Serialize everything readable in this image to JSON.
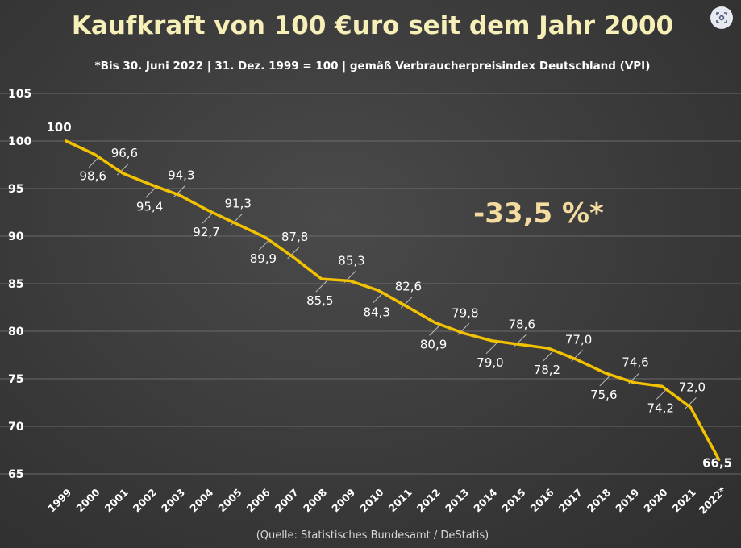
{
  "chart_data": {
    "type": "line",
    "title": "Kaufkraft von 100 €uro seit dem Jahr 2000",
    "subtitle": "*Bis 30. Juni 2022 | 31. Dez. 1999 = 100 | gemäß Verbraucherpreisindex Deutschland (VPI)",
    "categories": [
      "1999",
      "2000",
      "2001",
      "2002",
      "2003",
      "2004",
      "2005",
      "2006",
      "2007",
      "2008",
      "2009",
      "2010",
      "2011",
      "2012",
      "2013",
      "2014",
      "2015",
      "2016",
      "2017",
      "2018",
      "2019",
      "2020",
      "2021",
      "2022*"
    ],
    "series": [
      {
        "name": "Kaufkraft",
        "values": [
          100,
          98.6,
          96.6,
          95.4,
          94.3,
          92.7,
          91.3,
          89.9,
          87.8,
          85.5,
          85.3,
          84.3,
          82.6,
          80.9,
          79.8,
          79.0,
          78.6,
          78.2,
          77.0,
          75.6,
          74.6,
          74.2,
          72.0,
          66.5
        ],
        "labels": [
          "100",
          "98,6",
          "96,6",
          "95,4",
          "94,3",
          "92,7",
          "91,3",
          "89,9",
          "87,8",
          "85,5",
          "85,3",
          "84,3",
          "82,6",
          "80,9",
          "79,8",
          "79,0",
          "78,6",
          "78,2",
          "77,0",
          "75,6",
          "74,6",
          "74,2",
          "72,0",
          "66,5"
        ]
      }
    ],
    "yticks": [
      "65",
      "70",
      "75",
      "80",
      "85",
      "90",
      "95",
      "100",
      "105"
    ],
    "ylim": [
      65,
      105
    ],
    "xlabel": "",
    "ylabel": "",
    "grid": true,
    "annotation": "-33,5 %*",
    "source": "(Quelle: Statistisches Bundesamt / DeStatis)",
    "colors": {
      "line": "#f2c200",
      "first_label": "#a8d08d",
      "last_label": "#f4b6c2",
      "title": "#f7efb8",
      "callout": "#f4dca0"
    }
  }
}
